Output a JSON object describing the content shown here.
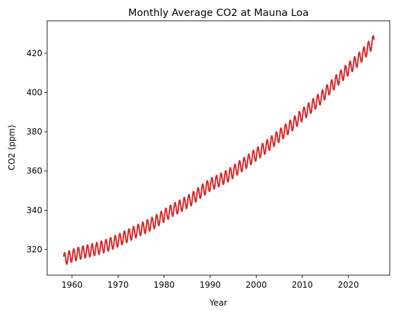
{
  "chart_data": {
    "type": "line",
    "title": "Monthly Average CO2 at Mauna Loa",
    "xlabel": "Year",
    "ylabel": "CO2 (ppm)",
    "xlim": [
      1954.6,
      2029.0
    ],
    "ylim": [
      306.9,
      436.6
    ],
    "xticks": [
      1960,
      1970,
      1980,
      1990,
      2000,
      2010,
      2020
    ],
    "yticks": [
      320,
      340,
      360,
      380,
      400,
      420
    ],
    "grid": false,
    "legend": "none",
    "color": "#d62728",
    "seasonal_amplitude_ppm": 3.2,
    "series": [
      {
        "x": [
          1958.2,
          1960,
          1962,
          1964,
          1966,
          1968,
          1970,
          1972,
          1974,
          1976,
          1978,
          1980,
          1982,
          1984,
          1986,
          1988,
          1990,
          1992,
          1994,
          1996,
          1998,
          2000,
          2002,
          2004,
          2006,
          2008,
          2010,
          2012,
          2014,
          2016,
          2018,
          2020,
          2022,
          2024,
          2025.6
        ],
        "trend": [
          315.0,
          316.8,
          318.4,
          319.5,
          320.8,
          322.5,
          324.6,
          326.9,
          329.3,
          331.5,
          334.0,
          337.3,
          340.3,
          342.8,
          345.7,
          349.5,
          353.0,
          355.3,
          357.8,
          361.4,
          364.8,
          368.5,
          372.0,
          376.0,
          380.0,
          384.0,
          388.6,
          392.9,
          397.2,
          402.4,
          407.4,
          412.0,
          416.4,
          421.8,
          426.4
        ]
      }
    ]
  }
}
